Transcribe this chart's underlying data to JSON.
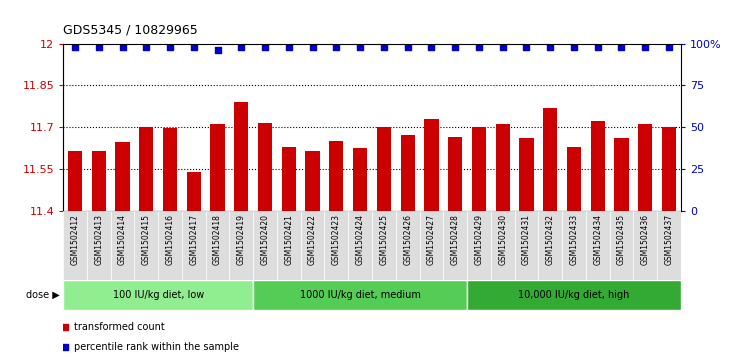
{
  "title": "GDS5345 / 10829965",
  "categories": [
    "GSM1502412",
    "GSM1502413",
    "GSM1502414",
    "GSM1502415",
    "GSM1502416",
    "GSM1502417",
    "GSM1502418",
    "GSM1502419",
    "GSM1502420",
    "GSM1502421",
    "GSM1502422",
    "GSM1502423",
    "GSM1502424",
    "GSM1502425",
    "GSM1502426",
    "GSM1502427",
    "GSM1502428",
    "GSM1502429",
    "GSM1502430",
    "GSM1502431",
    "GSM1502432",
    "GSM1502433",
    "GSM1502434",
    "GSM1502435",
    "GSM1502436",
    "GSM1502437"
  ],
  "bar_values": [
    11.615,
    11.615,
    11.645,
    11.7,
    11.695,
    11.54,
    11.71,
    11.79,
    11.715,
    11.63,
    11.615,
    11.65,
    11.625,
    11.7,
    11.67,
    11.73,
    11.665,
    11.7,
    11.71,
    11.66,
    11.77,
    11.63,
    11.72,
    11.66,
    11.71,
    11.7
  ],
  "percentile_values": [
    98,
    98,
    98,
    98,
    98,
    98,
    96,
    98,
    98,
    98,
    98,
    98,
    98,
    98,
    98,
    98,
    98,
    98,
    98,
    98,
    98,
    98,
    98,
    98,
    98,
    98
  ],
  "bar_color": "#CC0000",
  "dot_color": "#0000CC",
  "ylim_left": [
    11.4,
    12.0
  ],
  "ylim_right": [
    0,
    100
  ],
  "yticks_left": [
    11.4,
    11.55,
    11.7,
    11.85,
    12.0
  ],
  "yticks_right": [
    0,
    25,
    50,
    75,
    100
  ],
  "ytick_labels_left": [
    "11.4",
    "11.55",
    "11.7",
    "11.85",
    "12"
  ],
  "ytick_labels_right": [
    "0",
    "25",
    "50",
    "75",
    "100%"
  ],
  "hlines": [
    11.55,
    11.7,
    11.85
  ],
  "groups": [
    {
      "label": "100 IU/kg diet, low",
      "start": 0,
      "end": 8,
      "color": "#90EE90"
    },
    {
      "label": "1000 IU/kg diet, medium",
      "start": 8,
      "end": 17,
      "color": "#55CC55"
    },
    {
      "label": "10,000 IU/kg diet, high",
      "start": 17,
      "end": 26,
      "color": "#33AA33"
    }
  ],
  "dose_label": "dose",
  "legend_items": [
    {
      "label": "transformed count",
      "color": "#CC0000"
    },
    {
      "label": "percentile rank within the sample",
      "color": "#0000CC"
    }
  ],
  "background_color": "#FFFFFF",
  "plot_bg_color": "#FFFFFF",
  "xtick_bg_color": "#DDDDDD"
}
